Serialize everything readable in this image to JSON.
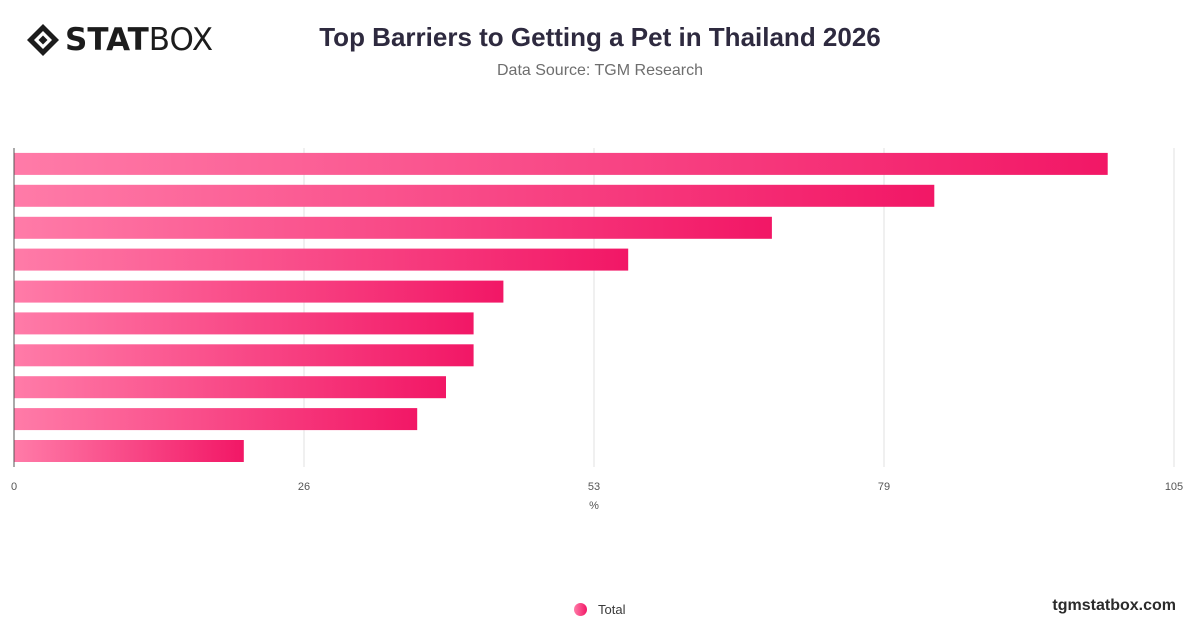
{
  "brand": {
    "logo_bold": "STAT",
    "logo_light": "BOX",
    "site": "tgmstatbox.com"
  },
  "colors": {
    "bar_start": "#ff7ba8",
    "bar_end": "#f21766",
    "grid": "#e2e2e2",
    "axis": "#555555"
  },
  "chart_data": {
    "type": "bar",
    "orientation": "horizontal",
    "title": "Top Barriers to Getting a Pet in Thailand 2026",
    "subtitle": "Data Source: TGM Research",
    "xlabel": "%",
    "ylabel": "",
    "xlim": [
      0,
      105
    ],
    "x_ticks": [
      "0",
      "26",
      "53",
      "79",
      "105"
    ],
    "x_tick_values": [
      0,
      26.25,
      52.5,
      78.75,
      105
    ],
    "grid": true,
    "legend": "bottom-center",
    "series": [
      {
        "name": "Total",
        "values": [
          99,
          83.3,
          68.6,
          55.6,
          44.3,
          41.6,
          41.6,
          39.1,
          36.5,
          20.8
        ]
      }
    ]
  }
}
